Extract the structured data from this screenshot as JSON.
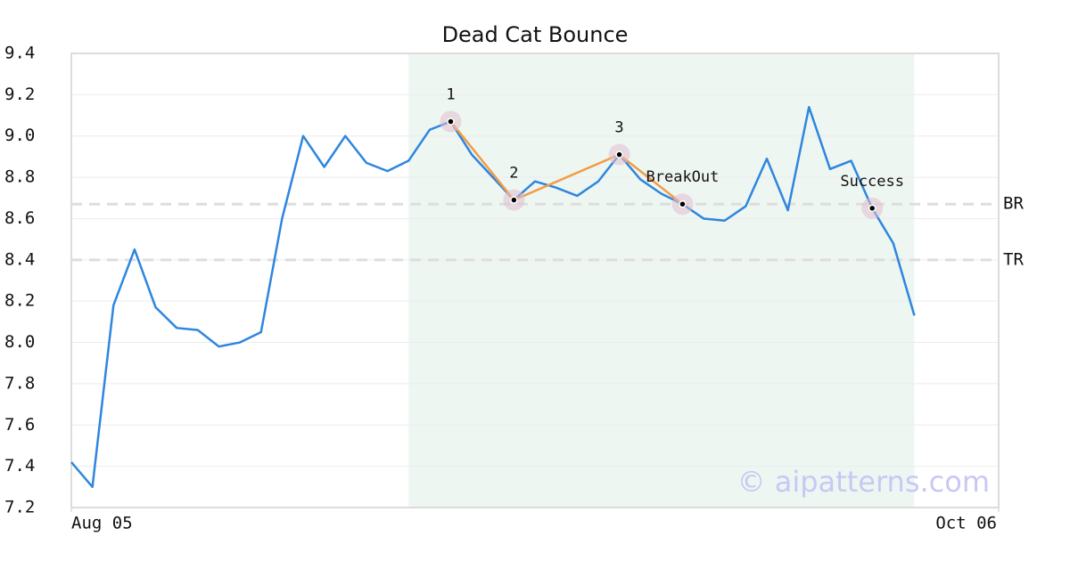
{
  "chart_data": {
    "type": "line",
    "title": "Dead Cat Bounce",
    "x": [
      0,
      1,
      2,
      3,
      4,
      5,
      6,
      7,
      8,
      9,
      10,
      11,
      12,
      13,
      14,
      15,
      16,
      17,
      18,
      19,
      20,
      21,
      22,
      23,
      24,
      25,
      26,
      27,
      28,
      29,
      30,
      31,
      32,
      33,
      34,
      35,
      36,
      37,
      38,
      39,
      40
    ],
    "series": [
      {
        "color": "#2e86de",
        "values": [
          7.42,
          7.3,
          8.18,
          8.45,
          8.17,
          8.07,
          8.06,
          7.98,
          8.0,
          8.05,
          8.6,
          9.0,
          8.85,
          9.0,
          8.87,
          8.83,
          8.88,
          9.03,
          9.07,
          8.91,
          8.8,
          8.69,
          8.78,
          8.75,
          8.71,
          8.78,
          8.91,
          8.79,
          8.72,
          8.67,
          8.6,
          8.59,
          8.66,
          8.89,
          8.64,
          9.14,
          8.84,
          8.88,
          8.65,
          8.48,
          8.13
        ]
      }
    ],
    "xlim": [
      0,
      44
    ],
    "xticks": [
      {
        "value": 0,
        "label": "Aug 05"
      },
      {
        "value": 44,
        "label": "Oct 06"
      }
    ],
    "ylim": [
      7.2,
      9.4
    ],
    "yticks": [
      7.2,
      7.4,
      7.6,
      7.8,
      {
        "value": 8,
        "label": "8.0"
      },
      8.2,
      8.4,
      8.6,
      8.8,
      {
        "value": 9,
        "label": "9.0"
      },
      9.2,
      9.4
    ],
    "grid": true,
    "shaded_region": {
      "x": [
        16,
        40
      ],
      "color": "#eef6f2"
    },
    "pattern_color": "#f39c45",
    "annotations": [
      {
        "label": "1",
        "x": 18,
        "y": 9.07
      },
      {
        "label": "2",
        "x": 21,
        "y": 8.69
      },
      {
        "label": "3",
        "x": 26,
        "y": 8.91
      },
      {
        "label": "BreakOut",
        "x": 29,
        "y": 8.67
      },
      {
        "label": "Success",
        "x": 38,
        "y": 8.65
      }
    ],
    "pattern_points": [
      0,
      1,
      2,
      3
    ],
    "reference_lines": [
      {
        "label": "BR",
        "value": 8.67
      },
      {
        "label": "TR",
        "value": 8.4
      }
    ],
    "watermark": "© aipatterns.com"
  }
}
